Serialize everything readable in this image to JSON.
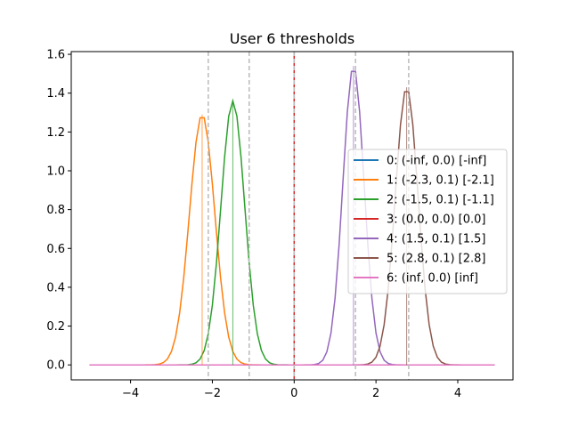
{
  "chart_data": {
    "type": "line",
    "title": "User 6 thresholds",
    "xlabel": "",
    "ylabel": "",
    "xlim": [
      -5.45,
      5.35
    ],
    "ylim": [
      -0.077,
      1.614
    ],
    "xticks": [
      -4,
      -2,
      0,
      2,
      4
    ],
    "xtick_labels": [
      "−4",
      "−2",
      "0",
      "2",
      "4"
    ],
    "yticks": [
      0.0,
      0.2,
      0.4,
      0.6,
      0.8,
      1.0,
      1.2,
      1.4,
      1.6
    ],
    "ytick_labels": [
      "0.0",
      "0.2",
      "0.4",
      "0.6",
      "0.8",
      "1.0",
      "1.2",
      "1.4",
      "1.6"
    ],
    "grid": false,
    "legend_position": "center-right",
    "x_range": [
      -5.0,
      4.9
    ],
    "x_step": 0.1,
    "threshold_lines": [
      -2.1,
      -1.1,
      0.0,
      1.5,
      2.8
    ],
    "threshold_line_color": "#bbbbbb",
    "series": [
      {
        "name": "0: (-inf, 0.0) [-inf]",
        "color": "#1f77b4",
        "mean": null,
        "sd": null,
        "peak": 0
      },
      {
        "name": "1: (-2.3, 0.1) [-2.1]",
        "color": "#ff7f0e",
        "mean": -2.25,
        "sd": 0.31,
        "peak": 1.29
      },
      {
        "name": "2: (-1.5, 0.1) [-1.1]",
        "color": "#2ca02c",
        "mean": -1.5,
        "sd": 0.29,
        "peak": 1.36
      },
      {
        "name": "3: (0.0, 0.0) [0.0]",
        "color": "#d62728",
        "mean": 0.0,
        "sd": 0.0,
        "peak": 0,
        "vertical_at": 0.0
      },
      {
        "name": "4: (1.5, 0.1) [1.5]",
        "color": "#9467bd",
        "mean": 1.45,
        "sd": 0.26,
        "peak": 1.54
      },
      {
        "name": "5: (2.8, 0.1) [2.8]",
        "color": "#8c564b",
        "mean": 2.75,
        "sd": 0.28,
        "peak": 1.43
      },
      {
        "name": "6: (inf, 0.0) [inf]",
        "color": "#e377c2",
        "mean": null,
        "sd": null,
        "peak": 0
      }
    ],
    "mean_markers": [
      {
        "x": -2.25,
        "color": "#ff7f0e"
      },
      {
        "x": -1.5,
        "color": "#2ca02c"
      },
      {
        "x": 1.45,
        "color": "#9467bd"
      },
      {
        "x": 2.75,
        "color": "#8c564b"
      }
    ]
  }
}
